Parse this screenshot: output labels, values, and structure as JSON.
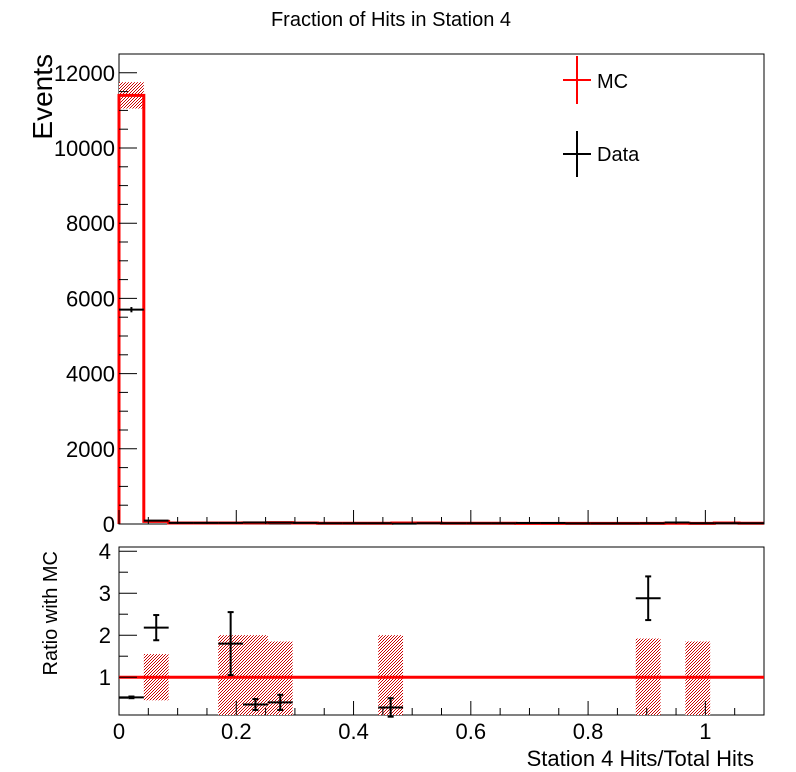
{
  "title": "Fraction of Hits in Station 4",
  "colors": {
    "mc": "#ff0000",
    "data": "#000000",
    "band": "#cc0000"
  },
  "chart_data": [
    {
      "type": "histogram",
      "ylabel": "Events",
      "xlim": [
        0,
        1.1
      ],
      "ylim": [
        0,
        12500
      ],
      "yticks": [
        0,
        2000,
        4000,
        6000,
        8000,
        10000,
        12000
      ],
      "ytick_labels": [
        "0",
        "2000",
        "4000",
        "6000",
        "8000",
        "10000",
        "12000"
      ],
      "bin_width": 0.0423,
      "legend": {
        "position": "top-right",
        "entries": [
          {
            "label": "MC"
          },
          {
            "label": "Data"
          }
        ]
      },
      "series": [
        {
          "name": "MC",
          "values": [
            11400,
            70,
            25,
            25,
            25,
            30,
            35,
            25,
            20,
            20,
            20,
            25,
            25,
            20,
            20,
            20,
            15,
            15,
            15,
            15,
            15,
            15,
            20,
            15,
            25,
            20
          ],
          "errors": [
            350,
            8,
            4,
            4,
            4,
            4,
            5,
            4,
            4,
            4,
            4,
            4,
            4,
            4,
            4,
            4,
            3,
            3,
            3,
            3,
            3,
            3,
            4,
            3,
            4,
            4
          ]
        },
        {
          "name": "Data",
          "values": [
            5700,
            90,
            30,
            30,
            30,
            40,
            35,
            30,
            20,
            20,
            20,
            10,
            20,
            20,
            20,
            20,
            25,
            25,
            15,
            15,
            15,
            20,
            40,
            20,
            20,
            20
          ],
          "errors": [
            70,
            10,
            6,
            6,
            6,
            6,
            6,
            6,
            5,
            5,
            5,
            4,
            5,
            5,
            5,
            5,
            5,
            5,
            4,
            4,
            4,
            5,
            7,
            5,
            5,
            5
          ]
        }
      ]
    },
    {
      "type": "ratio",
      "ylabel": "Ratio with MC",
      "xlabel": "Station 4 Hits/Total Hits",
      "xlim": [
        0,
        1.1
      ],
      "ylim": [
        0.1,
        4.1
      ],
      "yticks": [
        1,
        2,
        3,
        4
      ],
      "ytick_labels": [
        "1",
        "2",
        "3",
        "4"
      ],
      "xticks": [
        0,
        0.2,
        0.4,
        0.6,
        0.8,
        1
      ],
      "xtick_labels": [
        "0",
        "0.2",
        "0.4",
        "0.6",
        "0.8",
        "1"
      ],
      "reference_line": 1,
      "mc_uncertainty_bands": [
        {
          "x": [
            0.0423,
            0.0846
          ],
          "y": [
            0.45,
            1.55
          ]
        },
        {
          "x": [
            0.1692,
            0.2115
          ],
          "y": [
            0.1,
            2.0
          ]
        },
        {
          "x": [
            0.2115,
            0.2538
          ],
          "y": [
            0.1,
            2.0
          ]
        },
        {
          "x": [
            0.2538,
            0.2961
          ],
          "y": [
            0.1,
            1.85
          ]
        },
        {
          "x": [
            0.4421,
            0.4844
          ],
          "y": [
            0.1,
            2.0
          ]
        },
        {
          "x": [
            0.8813,
            0.9236
          ],
          "y": [
            0.1,
            1.92
          ]
        },
        {
          "x": [
            0.9659,
            1.0082
          ],
          "y": [
            0.1,
            1.85
          ]
        }
      ],
      "points": [
        {
          "x": 0.0212,
          "y": 0.52,
          "xerr": 0.0212,
          "yerr": 0.02
        },
        {
          "x": 0.0635,
          "y": 2.18,
          "xerr": 0.0212,
          "yerr": 0.3
        },
        {
          "x": 0.1904,
          "y": 1.8,
          "xerr": 0.0212,
          "yerr": 0.75
        },
        {
          "x": 0.2327,
          "y": 0.35,
          "xerr": 0.0212,
          "yerr": 0.13
        },
        {
          "x": 0.275,
          "y": 0.4,
          "xerr": 0.0212,
          "yerr": 0.18
        },
        {
          "x": 0.4633,
          "y": 0.28,
          "xerr": 0.0212,
          "yerr": 0.22
        },
        {
          "x": 0.9025,
          "y": 2.88,
          "xerr": 0.0212,
          "yerr": 0.52
        }
      ]
    }
  ]
}
